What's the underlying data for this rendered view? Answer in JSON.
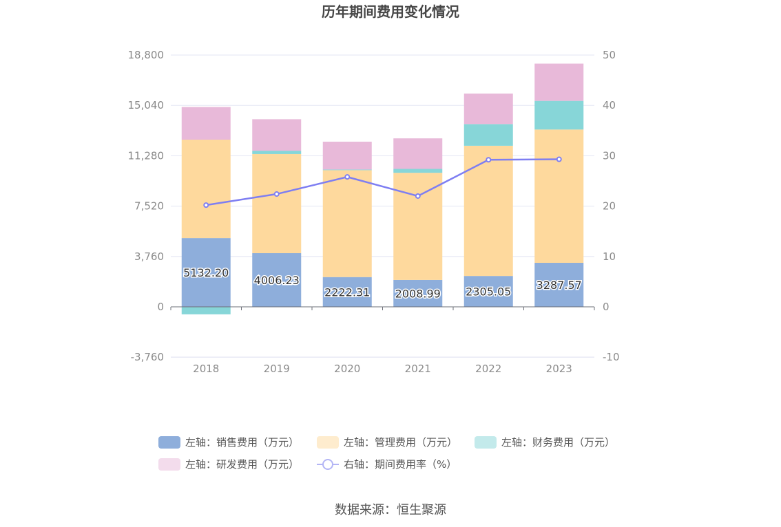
{
  "chart_data": {
    "type": "bar",
    "title": "历年期间费用变化情况",
    "categories": [
      "2018",
      "2019",
      "2020",
      "2021",
      "2022",
      "2023"
    ],
    "left_axis": {
      "ylim": [
        -3760,
        18800
      ],
      "ticks": [
        -3760,
        0,
        3760,
        7520,
        11280,
        15040,
        18800
      ],
      "tick_labels": [
        "-3,760",
        "0",
        "3,760",
        "7,520",
        "11,280",
        "15,040",
        "18,800"
      ]
    },
    "right_axis": {
      "ylim": [
        -10,
        50
      ],
      "ticks": [
        -10,
        0,
        10,
        20,
        30,
        40,
        50
      ],
      "tick_labels": [
        "-10",
        "0",
        "10",
        "20",
        "30",
        "40",
        "50"
      ]
    },
    "series": [
      {
        "name": "左轴：销售费用（万元）",
        "kind": "bar",
        "axis": "left",
        "color": "#8eaedb",
        "values": [
          5132.2,
          4006.23,
          2222.31,
          2008.99,
          2305.05,
          3287.57
        ],
        "labels": [
          "5132.20",
          "4006.23",
          "2222.31",
          "2008.99",
          "2305.05",
          "3287.57"
        ]
      },
      {
        "name": "左轴：管理费用（万元）",
        "kind": "bar",
        "axis": "left",
        "color": "#fed99d",
        "values": [
          7350,
          7400,
          7980,
          8000,
          9720,
          9950
        ]
      },
      {
        "name": "左轴：财务费用（万元）",
        "kind": "bar",
        "axis": "left",
        "color": "#87d6d8",
        "values": [
          -560,
          250,
          50,
          290,
          1620,
          2140
        ]
      },
      {
        "name": "左轴：研发费用（万元）",
        "kind": "bar",
        "axis": "left",
        "color": "#e8b9d9",
        "values": [
          2440,
          2350,
          2080,
          2280,
          2280,
          2780
        ]
      },
      {
        "name": "右轴：期间费用率（%）",
        "kind": "line",
        "axis": "right",
        "color": "#7e7ef2",
        "values": [
          20.2,
          22.4,
          25.8,
          22.0,
          29.2,
          29.3
        ]
      }
    ],
    "legend_position": "bottom",
    "grid": true
  },
  "source": "数据来源：恒生聚源"
}
